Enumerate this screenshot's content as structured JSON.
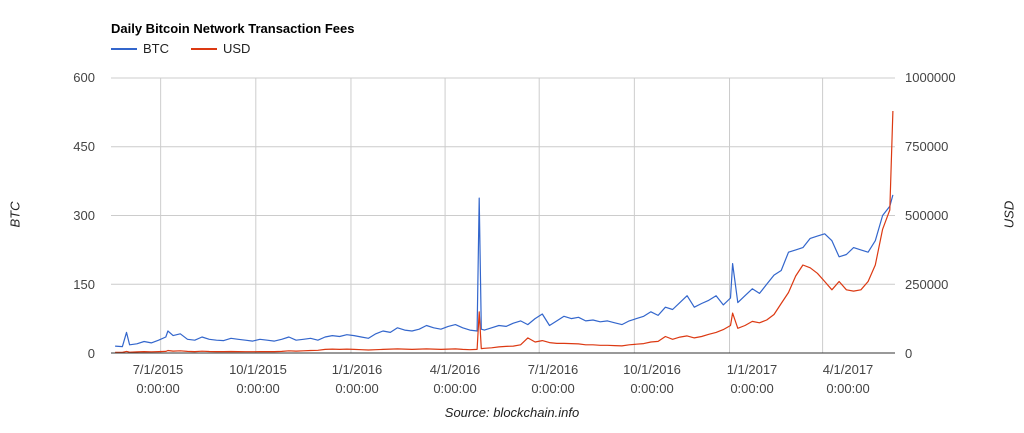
{
  "chart_data": {
    "type": "line",
    "title": "Daily Bitcoin Network Transaction Fees",
    "subtitle": "",
    "source": "Source: blockchain.info",
    "xlabel": "",
    "ylabel": "BTC",
    "ylabel_right": "USD",
    "ylim": [
      0,
      600
    ],
    "ylim_right": [
      0,
      1000000
    ],
    "yticks": [
      "0",
      "150",
      "300",
      "450",
      "600"
    ],
    "yticks_right": [
      "0",
      "250000",
      "500000",
      "750000",
      "1000000"
    ],
    "xticks": [
      {
        "date": "7/1/2015",
        "time": "0:00:00"
      },
      {
        "date": "10/1/2015",
        "time": "0:00:00"
      },
      {
        "date": "1/1/2016",
        "time": "0:00:00"
      },
      {
        "date": "4/1/2016",
        "time": "0:00:00"
      },
      {
        "date": "7/1/2016",
        "time": "0:00:00"
      },
      {
        "date": "10/1/2016",
        "time": "0:00:00"
      },
      {
        "date": "1/1/2017",
        "time": "0:00:00"
      },
      {
        "date": "4/1/2017",
        "time": "0:00:00"
      }
    ],
    "grid": true,
    "legend_position": "top",
    "x": [
      "2015-05-18",
      "2015-05-25",
      "2015-05-29",
      "2015-06-01",
      "2015-06-08",
      "2015-06-15",
      "2015-06-22",
      "2015-06-29",
      "2015-07-06",
      "2015-07-08",
      "2015-07-13",
      "2015-07-20",
      "2015-07-27",
      "2015-08-03",
      "2015-08-10",
      "2015-08-17",
      "2015-08-24",
      "2015-08-31",
      "2015-09-07",
      "2015-09-14",
      "2015-09-21",
      "2015-09-28",
      "2015-10-05",
      "2015-10-12",
      "2015-10-19",
      "2015-10-26",
      "2015-11-02",
      "2015-11-09",
      "2015-11-16",
      "2015-11-23",
      "2015-11-30",
      "2015-12-07",
      "2015-12-14",
      "2015-12-21",
      "2015-12-28",
      "2016-01-04",
      "2016-01-11",
      "2016-01-18",
      "2016-01-25",
      "2016-02-01",
      "2016-02-08",
      "2016-02-15",
      "2016-02-22",
      "2016-02-29",
      "2016-03-07",
      "2016-03-14",
      "2016-03-21",
      "2016-03-28",
      "2016-04-04",
      "2016-04-11",
      "2016-04-18",
      "2016-04-25",
      "2016-05-02",
      "2016-05-04",
      "2016-05-06",
      "2016-05-09",
      "2016-05-16",
      "2016-05-23",
      "2016-05-30",
      "2016-06-06",
      "2016-06-13",
      "2016-06-20",
      "2016-06-27",
      "2016-07-04",
      "2016-07-11",
      "2016-07-18",
      "2016-07-25",
      "2016-08-01",
      "2016-08-08",
      "2016-08-15",
      "2016-08-22",
      "2016-08-29",
      "2016-09-05",
      "2016-09-12",
      "2016-09-19",
      "2016-09-26",
      "2016-10-03",
      "2016-10-10",
      "2016-10-17",
      "2016-10-24",
      "2016-10-31",
      "2016-11-07",
      "2016-11-14",
      "2016-11-21",
      "2016-11-28",
      "2016-12-05",
      "2016-12-12",
      "2016-12-19",
      "2016-12-26",
      "2017-01-02",
      "2017-01-04",
      "2017-01-09",
      "2017-01-16",
      "2017-01-23",
      "2017-01-30",
      "2017-02-06",
      "2017-02-13",
      "2017-02-20",
      "2017-02-27",
      "2017-03-06",
      "2017-03-13",
      "2017-03-20",
      "2017-03-27",
      "2017-04-03",
      "2017-04-10",
      "2017-04-17",
      "2017-04-24",
      "2017-05-01",
      "2017-05-08",
      "2017-05-15",
      "2017-05-22",
      "2017-05-29",
      "2017-06-05",
      "2017-06-08"
    ],
    "series": [
      {
        "name": "BTC",
        "color": "#3366cc",
        "axis": "left",
        "values": [
          15,
          14,
          45,
          18,
          20,
          25,
          22,
          28,
          35,
          48,
          38,
          42,
          30,
          28,
          35,
          30,
          28,
          27,
          32,
          30,
          28,
          26,
          30,
          28,
          26,
          30,
          35,
          28,
          30,
          32,
          28,
          35,
          38,
          36,
          40,
          38,
          35,
          32,
          42,
          48,
          45,
          55,
          50,
          48,
          52,
          60,
          55,
          52,
          58,
          62,
          55,
          50,
          48,
          338,
          52,
          50,
          55,
          60,
          58,
          65,
          70,
          62,
          75,
          85,
          60,
          70,
          80,
          75,
          78,
          70,
          72,
          68,
          70,
          66,
          62,
          70,
          75,
          80,
          90,
          82,
          100,
          95,
          110,
          125,
          100,
          108,
          115,
          125,
          105,
          120,
          195,
          110,
          125,
          140,
          130,
          150,
          170,
          180,
          220,
          225,
          230,
          250,
          255,
          260,
          245,
          210,
          215,
          230,
          225,
          220,
          245,
          300,
          320,
          345
        ]
      },
      {
        "name": "USD",
        "color": "#dc3912",
        "axis": "right",
        "values": [
          2000,
          2500,
          6000,
          3000,
          4000,
          5000,
          4500,
          5000,
          6000,
          9000,
          7000,
          8000,
          6000,
          5000,
          6500,
          5500,
          5000,
          5000,
          5500,
          5000,
          4800,
          4600,
          5200,
          5000,
          5000,
          6000,
          8000,
          7000,
          8000,
          9000,
          10000,
          13000,
          14000,
          13000,
          14000,
          13000,
          12000,
          11000,
          12000,
          13000,
          14000,
          15000,
          14000,
          13000,
          14000,
          15000,
          14000,
          13000,
          14000,
          15000,
          13000,
          12000,
          13000,
          150000,
          16000,
          17000,
          19000,
          22000,
          24000,
          25000,
          30000,
          55000,
          40000,
          45000,
          38000,
          35000,
          35000,
          34000,
          33000,
          30000,
          30000,
          28000,
          28000,
          27000,
          26000,
          30000,
          32000,
          34000,
          40000,
          42000,
          60000,
          50000,
          58000,
          62000,
          55000,
          60000,
          68000,
          75000,
          85000,
          100000,
          145000,
          90000,
          100000,
          115000,
          110000,
          120000,
          140000,
          180000,
          220000,
          280000,
          320000,
          310000,
          290000,
          260000,
          230000,
          260000,
          230000,
          225000,
          230000,
          260000,
          320000,
          450000,
          520000,
          880000
        ]
      }
    ]
  }
}
